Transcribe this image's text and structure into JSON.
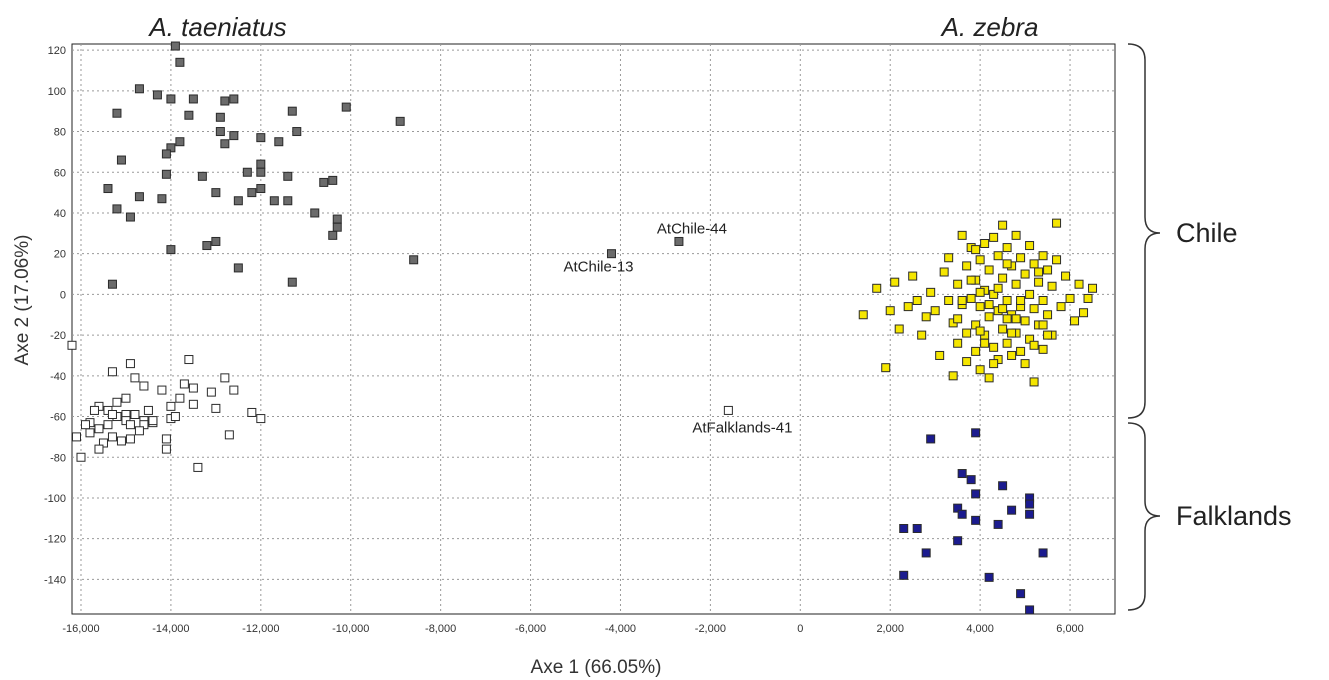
{
  "chart_data": {
    "type": "scatter",
    "xlabel": "Axe 1 (66.05%)",
    "ylabel": "Axe 2 (17.06%)",
    "xlim": [
      -16200,
      7000
    ],
    "ylim": [
      -157,
      123
    ],
    "xticks": [
      -16000,
      -14000,
      -12000,
      -10000,
      -8000,
      -6000,
      -4000,
      -2000,
      0,
      2000,
      4000,
      6000
    ],
    "xtick_labels": [
      "-16,000",
      "-14,000",
      "-12,000",
      "-10,000",
      "-8,000",
      "-6,000",
      "-4,000",
      "-2,000",
      "0",
      "2,000",
      "4,000",
      "6,000"
    ],
    "yticks": [
      120,
      100,
      80,
      60,
      40,
      20,
      0,
      -20,
      -40,
      -60,
      -80,
      -100,
      -120,
      -140
    ],
    "ytick_labels": [
      "120",
      "100",
      "80",
      "60",
      "40",
      "20",
      "0",
      "-20",
      "-40",
      "-60",
      "-80",
      "-100",
      "-120",
      "-140"
    ],
    "grid": true,
    "species_labels": [
      "A. taeniatus",
      "A. zebra"
    ],
    "group_labels": [
      "Chile",
      "Falklands"
    ],
    "series": [
      {
        "color": "#6b6b6b",
        "points": [
          [
            -13900,
            122
          ],
          [
            -13800,
            114
          ],
          [
            -14700,
            101
          ],
          [
            -14300,
            98
          ],
          [
            -14000,
            96
          ],
          [
            -13500,
            96
          ],
          [
            -12800,
            95
          ],
          [
            -12600,
            96
          ],
          [
            -15200,
            89
          ],
          [
            -13600,
            88
          ],
          [
            -12900,
            87
          ],
          [
            -11300,
            90
          ],
          [
            -10100,
            92
          ],
          [
            -8900,
            85
          ],
          [
            -12900,
            80
          ],
          [
            -12600,
            78
          ],
          [
            -12000,
            77
          ],
          [
            -11600,
            75
          ],
          [
            -11200,
            80
          ],
          [
            -13800,
            75
          ],
          [
            -14000,
            72
          ],
          [
            -14100,
            69
          ],
          [
            -12800,
            74
          ],
          [
            -15100,
            66
          ],
          [
            -12000,
            64
          ],
          [
            -12000,
            60
          ],
          [
            -12300,
            60
          ],
          [
            -11400,
            58
          ],
          [
            -14100,
            59
          ],
          [
            -13300,
            58
          ],
          [
            -10600,
            55
          ],
          [
            -10400,
            56
          ],
          [
            -15400,
            52
          ],
          [
            -14700,
            48
          ],
          [
            -14200,
            47
          ],
          [
            -13000,
            50
          ],
          [
            -12200,
            50
          ],
          [
            -11700,
            46
          ],
          [
            -11400,
            46
          ],
          [
            -12000,
            52
          ],
          [
            -12500,
            46
          ],
          [
            -15200,
            42
          ],
          [
            -14900,
            38
          ],
          [
            -10800,
            40
          ],
          [
            -10300,
            37
          ],
          [
            -10300,
            33
          ],
          [
            -10400,
            29
          ],
          [
            -13000,
            26
          ],
          [
            -13200,
            24
          ],
          [
            -14000,
            22
          ],
          [
            -12500,
            13
          ],
          [
            -11300,
            6
          ],
          [
            -15300,
            5
          ],
          [
            -8600,
            17
          ],
          [
            -4200,
            20
          ],
          [
            -2700,
            26
          ]
        ]
      },
      {
        "color": "#ffffff",
        "points": [
          [
            -16200,
            -25
          ],
          [
            -15300,
            -38
          ],
          [
            -14900,
            -34
          ],
          [
            -14800,
            -41
          ],
          [
            -14600,
            -45
          ],
          [
            -14200,
            -47
          ],
          [
            -14500,
            -57
          ],
          [
            -14600,
            -62
          ],
          [
            -14400,
            -63
          ],
          [
            -14000,
            -55
          ],
          [
            -14000,
            -61
          ],
          [
            -13700,
            -44
          ],
          [
            -13600,
            -32
          ],
          [
            -13500,
            -46
          ],
          [
            -13500,
            -54
          ],
          [
            -13800,
            -51
          ],
          [
            -13900,
            -60
          ],
          [
            -13100,
            -48
          ],
          [
            -13000,
            -56
          ],
          [
            -12800,
            -41
          ],
          [
            -12600,
            -47
          ],
          [
            -12700,
            -69
          ],
          [
            -12200,
            -58
          ],
          [
            -12000,
            -61
          ],
          [
            -13400,
            -85
          ],
          [
            -14100,
            -71
          ],
          [
            -14100,
            -76
          ],
          [
            -14400,
            -62
          ],
          [
            -14600,
            -64
          ],
          [
            -15000,
            -51
          ],
          [
            -15000,
            -59
          ],
          [
            -15200,
            -53
          ],
          [
            -15400,
            -57
          ],
          [
            -15600,
            -55
          ],
          [
            -15700,
            -57
          ],
          [
            -15800,
            -63
          ],
          [
            -15600,
            -66
          ],
          [
            -15400,
            -64
          ],
          [
            -15200,
            -60
          ],
          [
            -15000,
            -62
          ],
          [
            -14900,
            -64
          ],
          [
            -14700,
            -67
          ],
          [
            -14900,
            -71
          ],
          [
            -15100,
            -72
          ],
          [
            -15300,
            -70
          ],
          [
            -15500,
            -73
          ],
          [
            -15600,
            -76
          ],
          [
            -15800,
            -68
          ],
          [
            -15900,
            -64
          ],
          [
            -16100,
            -70
          ],
          [
            -16000,
            -80
          ],
          [
            -14800,
            -59
          ],
          [
            -15300,
            -59
          ],
          [
            -1600,
            -57
          ]
        ]
      },
      {
        "color": "#f5e600",
        "points": [
          [
            1400,
            -10
          ],
          [
            1700,
            3
          ],
          [
            1900,
            -36
          ],
          [
            2000,
            -8
          ],
          [
            2100,
            6
          ],
          [
            2200,
            -17
          ],
          [
            2400,
            -6
          ],
          [
            2500,
            9
          ],
          [
            2600,
            -3
          ],
          [
            2700,
            -20
          ],
          [
            2800,
            -11
          ],
          [
            2900,
            1
          ],
          [
            3000,
            -8
          ],
          [
            3100,
            -30
          ],
          [
            3200,
            11
          ],
          [
            3300,
            -3
          ],
          [
            3300,
            18
          ],
          [
            3400,
            -14
          ],
          [
            3400,
            -40
          ],
          [
            3500,
            5
          ],
          [
            3500,
            -24
          ],
          [
            3600,
            29
          ],
          [
            3600,
            -5
          ],
          [
            3700,
            14
          ],
          [
            3700,
            -33
          ],
          [
            3700,
            -19
          ],
          [
            3800,
            -2
          ],
          [
            3800,
            23
          ],
          [
            3900,
            7
          ],
          [
            3900,
            -15
          ],
          [
            3900,
            -28
          ],
          [
            4000,
            17
          ],
          [
            4000,
            -6
          ],
          [
            4000,
            -37
          ],
          [
            4100,
            25
          ],
          [
            4100,
            2
          ],
          [
            4100,
            -20
          ],
          [
            4200,
            12
          ],
          [
            4200,
            -11
          ],
          [
            4200,
            -41
          ],
          [
            4300,
            28
          ],
          [
            4300,
            0
          ],
          [
            4300,
            -26
          ],
          [
            4400,
            19
          ],
          [
            4400,
            -8
          ],
          [
            4400,
            -32
          ],
          [
            4500,
            34
          ],
          [
            4500,
            8
          ],
          [
            4500,
            -17
          ],
          [
            4600,
            23
          ],
          [
            4600,
            -3
          ],
          [
            4600,
            -24
          ],
          [
            4700,
            14
          ],
          [
            4700,
            -10
          ],
          [
            4700,
            -30
          ],
          [
            4800,
            29
          ],
          [
            4800,
            5
          ],
          [
            4800,
            -19
          ],
          [
            4900,
            18
          ],
          [
            4900,
            -6
          ],
          [
            4900,
            -28
          ],
          [
            5000,
            10
          ],
          [
            5000,
            -13
          ],
          [
            5100,
            24
          ],
          [
            5100,
            0
          ],
          [
            5100,
            -22
          ],
          [
            5200,
            15
          ],
          [
            5200,
            -7
          ],
          [
            5200,
            -43
          ],
          [
            5300,
            6
          ],
          [
            5300,
            -15
          ],
          [
            5400,
            19
          ],
          [
            5400,
            -3
          ],
          [
            5400,
            -27
          ],
          [
            5500,
            12
          ],
          [
            5500,
            -10
          ],
          [
            5600,
            4
          ],
          [
            5600,
            -20
          ],
          [
            5700,
            17
          ],
          [
            5700,
            35
          ],
          [
            5800,
            -6
          ],
          [
            5900,
            9
          ],
          [
            6000,
            -2
          ],
          [
            6100,
            -13
          ],
          [
            6200,
            5
          ],
          [
            6300,
            -9
          ],
          [
            6400,
            -2
          ],
          [
            6500,
            3
          ],
          [
            4300,
            -34
          ],
          [
            3600,
            -3
          ],
          [
            4000,
            -18
          ],
          [
            4400,
            3
          ],
          [
            4800,
            -12
          ],
          [
            5200,
            -25
          ],
          [
            3800,
            7
          ],
          [
            4600,
            15
          ],
          [
            5000,
            -34
          ],
          [
            4200,
            -5
          ],
          [
            5400,
            -15
          ],
          [
            3500,
            -12
          ],
          [
            4900,
            -3
          ],
          [
            4100,
            -24
          ],
          [
            4700,
            -19
          ],
          [
            5500,
            -20
          ],
          [
            3900,
            22
          ],
          [
            4500,
            -7
          ],
          [
            5300,
            11
          ],
          [
            4000,
            1
          ],
          [
            4600,
            -12
          ]
        ]
      },
      {
        "color": "#1b1b8f",
        "points": [
          [
            2900,
            -71
          ],
          [
            3900,
            -68
          ],
          [
            3600,
            -88
          ],
          [
            3800,
            -91
          ],
          [
            3900,
            -98
          ],
          [
            4500,
            -94
          ],
          [
            3500,
            -105
          ],
          [
            3600,
            -108
          ],
          [
            4400,
            -113
          ],
          [
            4700,
            -106
          ],
          [
            5100,
            -100
          ],
          [
            5100,
            -103
          ],
          [
            5100,
            -108
          ],
          [
            3900,
            -111
          ],
          [
            2300,
            -115
          ],
          [
            2600,
            -115
          ],
          [
            3500,
            -121
          ],
          [
            2800,
            -127
          ],
          [
            2300,
            -138
          ],
          [
            4200,
            -139
          ],
          [
            5400,
            -127
          ],
          [
            4900,
            -147
          ],
          [
            5100,
            -155
          ]
        ]
      }
    ],
    "annotations": [
      {
        "text": "AtChile-44",
        "x": -2700,
        "y": 26
      },
      {
        "text": "AtChile-13",
        "x": -4200,
        "y": 20
      },
      {
        "text": "AtFalklands-41",
        "x": -1600,
        "y": -57
      }
    ]
  }
}
